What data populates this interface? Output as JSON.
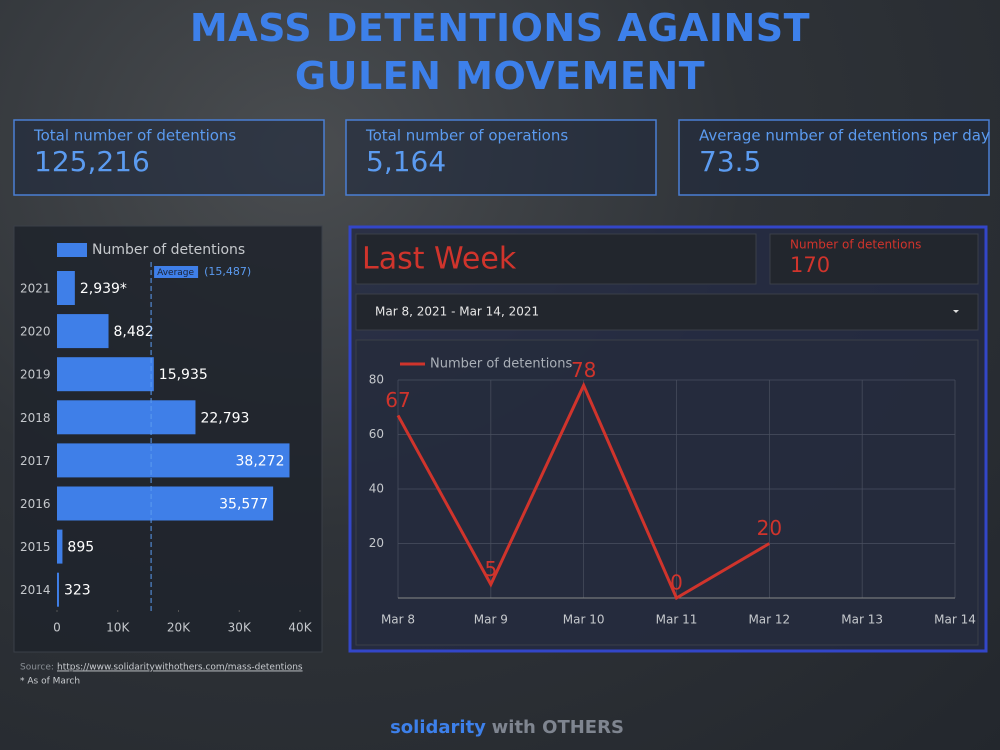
{
  "title": "MASS DETENTIONS AGAINST GULEN MOVEMENT",
  "kpis": [
    {
      "label": "Total number of detentions",
      "value": "125,216"
    },
    {
      "label": "Total number of operations",
      "value": "5,164"
    },
    {
      "label": "Average number of detentions per day",
      "value": "73.5"
    }
  ],
  "chart_data": [
    {
      "type": "hbar",
      "categories": [
        "2021",
        "2020",
        "2019",
        "2018",
        "2017",
        "2016",
        "2015",
        "2014"
      ],
      "series": [
        {
          "name": "Number of detentions",
          "color": "#3f7fe8",
          "values": [
            2939,
            8482,
            15935,
            22793,
            38272,
            35577,
            895,
            323
          ]
        }
      ],
      "value_labels": [
        "2,939*",
        "8,482",
        "15,935",
        "22,793",
        "38,272",
        "35,577",
        "895",
        "323"
      ],
      "xlim": [
        0,
        40000
      ],
      "xticks": [
        0,
        {
          "value": 10000,
          "label": "10K"
        },
        {
          "value": 20000,
          "label": "20K"
        },
        {
          "value": 30000,
          "label": "30K"
        },
        {
          "value": 40000,
          "label": "40K"
        }
      ],
      "average": {
        "label": "Average",
        "value": 15487,
        "value_label": "(15,487)"
      },
      "source_label": "Source:",
      "source_url": "https://www.solidaritywithothers.com/mass-detentions",
      "footnote": "* As of March"
    },
    {
      "type": "line",
      "title": "Last Week",
      "kpi": {
        "label": "Number of detentions",
        "value": 170
      },
      "date_range": "Mar 8, 2021 - Mar 14, 2021",
      "categories": [
        "Mar 8",
        "Mar 9",
        "Mar 10",
        "Mar 11",
        "Mar 12",
        "Mar 13",
        "Mar 14"
      ],
      "series": [
        {
          "name": "Number of detentions",
          "color": "#d0342c",
          "values": [
            67,
            5,
            78,
            0,
            20,
            null,
            null
          ]
        }
      ],
      "ylim": [
        0,
        80
      ],
      "yticks": [
        20,
        40,
        60,
        80
      ],
      "grid": true
    }
  ],
  "footer": {
    "brand": "solidarity",
    "rest": "with OTHERS"
  }
}
